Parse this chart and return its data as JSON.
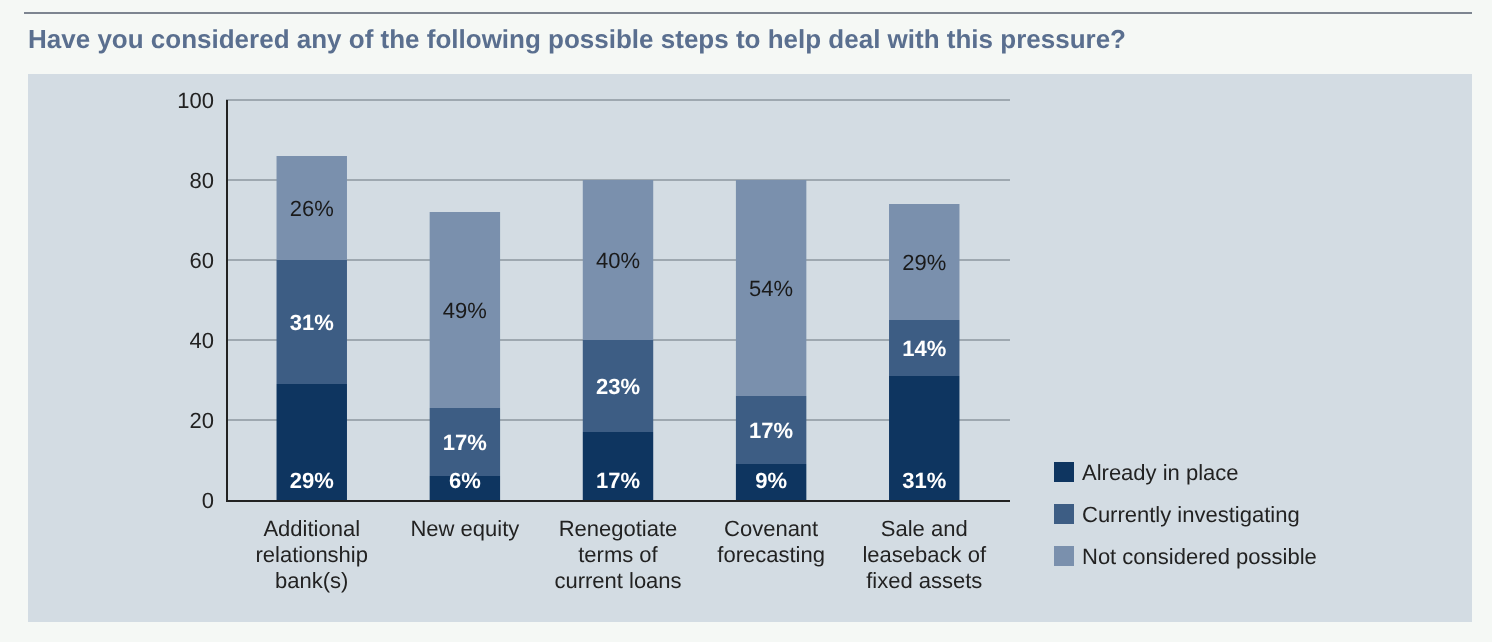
{
  "chart_data": {
    "type": "bar",
    "stacked": true,
    "title": "Have you considered any of the following possible steps to help deal with this pressure?",
    "categories": [
      "Additional relationship bank(s)",
      "New equity",
      "Renegotiate terms of current loans",
      "Covenant forecasting",
      "Sale and leaseback of fixed assets"
    ],
    "series": [
      {
        "name": "Already in place",
        "color": "#0e3560",
        "values": [
          29,
          6,
          17,
          9,
          31
        ],
        "value_labels": [
          "29%",
          "6%",
          "17%",
          "9%",
          "31%"
        ]
      },
      {
        "name": "Currently investigating",
        "color": "#3d5d84",
        "values": [
          31,
          17,
          23,
          17,
          14
        ],
        "value_labels": [
          "31%",
          "17%",
          "23%",
          "17%",
          "14%"
        ]
      },
      {
        "name": "Not considered possible",
        "color": "#7a90ad",
        "values": [
          26,
          49,
          40,
          54,
          29
        ],
        "value_labels": [
          "26%",
          "49%",
          "40%",
          "54%",
          "29%"
        ]
      }
    ],
    "ylim": [
      0,
      100
    ],
    "yticks": [
      0,
      20,
      40,
      60,
      80,
      100
    ],
    "grid": "y",
    "legend": "right"
  }
}
